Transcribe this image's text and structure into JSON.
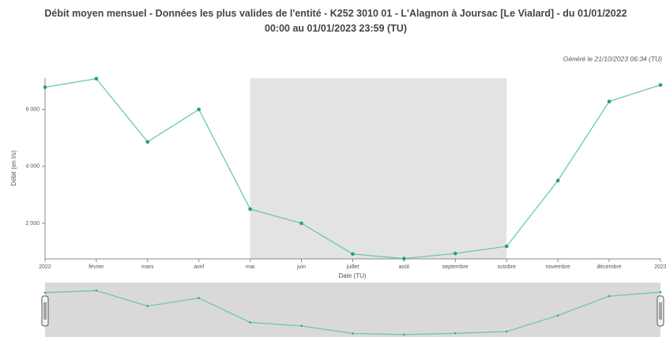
{
  "chart_data": {
    "type": "line",
    "title": "Débit moyen mensuel - Données les plus valides de l'entité - K252 3010 01 - L'Alagnon à Joursac [Le Vialard] - du 01/01/2022 00:00 au 01/01/2023 23:59 (TU)",
    "subtitle": "Généré le 21/10/2023 06:34 (TU)",
    "y_label": "Débit (en l/s)",
    "x_label": "Date (TU)",
    "categories": [
      "2022",
      "février",
      "mars",
      "avril",
      "mai",
      "juin",
      "juillet",
      "août",
      "septembre",
      "octobre",
      "novembre",
      "décembre",
      "2023"
    ],
    "series": [
      {
        "name": "Débit moyen mensuel",
        "color": "#6cc9a8",
        "point_color": "#22a45a",
        "values": [
          6780,
          7080,
          4860,
          6000,
          2500,
          2000,
          920,
          760,
          940,
          1190,
          3500,
          6280,
          6860
        ]
      }
    ],
    "ylim": [
      750,
      7100
    ],
    "yticks": [
      {
        "value": 2000,
        "label": "2 000"
      },
      {
        "value": 4000,
        "label": "4 000"
      },
      {
        "value": 6000,
        "label": "6 000"
      }
    ],
    "highlight": [
      4,
      9
    ],
    "highlight_color": "#e3e3e3",
    "navigator": true
  }
}
